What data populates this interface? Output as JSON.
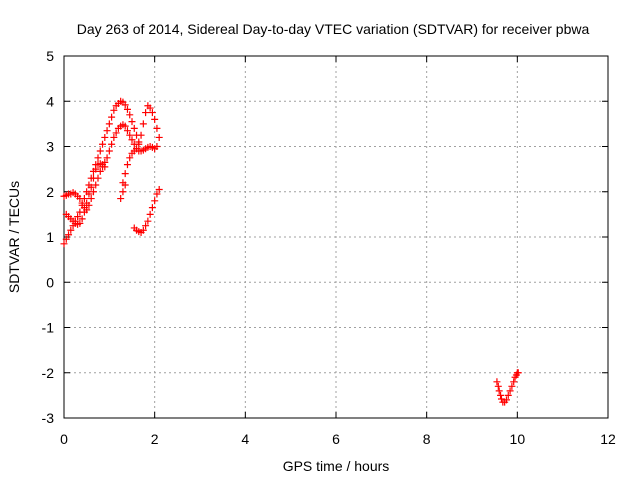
{
  "chart_data": {
    "type": "scatter",
    "title": "Day 263 of 2014, Sidereal Day-to-day VTEC variation (SDTVAR) for receiver pbwa",
    "xlabel": "GPS time / hours",
    "ylabel": "SDTVAR / TECUs",
    "xlim": [
      0,
      12
    ],
    "ylim": [
      -3,
      5
    ],
    "x_ticks": [
      "0",
      "2",
      "4",
      "6",
      "8",
      "10",
      "12"
    ],
    "y_ticks": [
      "-3",
      "-2",
      "-1",
      "0",
      "1",
      "2",
      "3",
      "4",
      "5"
    ],
    "grid": true,
    "legend": "none",
    "marker": "plus",
    "marker_color": "#ff0000",
    "series": [
      {
        "values": [
          [
            0.0,
            0.85
          ],
          [
            0.05,
            0.95
          ],
          [
            0.1,
            1.05
          ],
          [
            0.15,
            1.15
          ],
          [
            0.2,
            1.25
          ],
          [
            0.25,
            1.35
          ],
          [
            0.3,
            1.45
          ],
          [
            0.35,
            1.55
          ],
          [
            0.4,
            1.7
          ],
          [
            0.45,
            1.85
          ],
          [
            0.5,
            2.0
          ],
          [
            0.55,
            2.15
          ],
          [
            0.6,
            2.3
          ],
          [
            0.65,
            2.45
          ],
          [
            0.7,
            2.6
          ],
          [
            0.75,
            2.75
          ],
          [
            0.8,
            2.9
          ],
          [
            0.85,
            3.05
          ],
          [
            0.9,
            3.2
          ],
          [
            0.95,
            3.35
          ],
          [
            1.0,
            3.5
          ],
          [
            1.05,
            3.65
          ],
          [
            1.1,
            3.8
          ],
          [
            1.15,
            3.9
          ],
          [
            1.2,
            3.95
          ],
          [
            1.25,
            4.0
          ],
          [
            1.3,
            3.98
          ],
          [
            1.35,
            3.92
          ],
          [
            1.4,
            3.82
          ],
          [
            1.45,
            3.7
          ],
          [
            1.5,
            3.55
          ],
          [
            1.55,
            3.4
          ],
          [
            1.6,
            3.25
          ],
          [
            1.65,
            3.1
          ],
          [
            0.0,
            1.9
          ],
          [
            0.05,
            1.92
          ],
          [
            0.1,
            1.95
          ],
          [
            0.15,
            1.95
          ],
          [
            0.2,
            1.98
          ],
          [
            0.25,
            1.95
          ],
          [
            0.3,
            1.9
          ],
          [
            0.35,
            1.85
          ],
          [
            0.4,
            1.75
          ],
          [
            0.45,
            1.65
          ],
          [
            0.5,
            1.6
          ],
          [
            0.55,
            1.7
          ],
          [
            0.6,
            1.85
          ],
          [
            0.65,
            2.0
          ],
          [
            0.7,
            2.15
          ],
          [
            0.75,
            2.3
          ],
          [
            0.8,
            2.45
          ],
          [
            0.85,
            2.55
          ],
          [
            0.9,
            2.65
          ],
          [
            0.95,
            2.75
          ],
          [
            1.0,
            2.9
          ],
          [
            1.05,
            3.05
          ],
          [
            1.1,
            3.2
          ],
          [
            1.15,
            3.3
          ],
          [
            1.2,
            3.4
          ],
          [
            1.25,
            3.45
          ],
          [
            1.3,
            3.48
          ],
          [
            1.35,
            3.45
          ],
          [
            1.4,
            3.35
          ],
          [
            1.45,
            3.25
          ],
          [
            1.5,
            3.15
          ],
          [
            1.55,
            3.05
          ],
          [
            1.6,
            2.95
          ],
          [
            1.65,
            2.9
          ],
          [
            1.7,
            2.9
          ],
          [
            1.75,
            2.92
          ],
          [
            1.8,
            2.95
          ],
          [
            1.85,
            2.98
          ],
          [
            1.9,
            3.0
          ],
          [
            1.95,
            2.98
          ],
          [
            2.0,
            2.95
          ],
          [
            2.05,
            3.0
          ],
          [
            2.1,
            3.2
          ],
          [
            0.05,
            1.5
          ],
          [
            0.1,
            1.45
          ],
          [
            0.15,
            1.4
          ],
          [
            0.2,
            1.35
          ],
          [
            0.25,
            1.3
          ],
          [
            0.3,
            1.28
          ],
          [
            0.35,
            1.3
          ],
          [
            0.4,
            1.4
          ],
          [
            0.45,
            1.55
          ],
          [
            0.5,
            1.75
          ],
          [
            0.55,
            1.95
          ],
          [
            0.6,
            2.1
          ],
          [
            0.65,
            2.3
          ],
          [
            0.7,
            2.5
          ],
          [
            0.75,
            2.6
          ],
          [
            0.8,
            2.62
          ],
          [
            0.85,
            2.6
          ],
          [
            0.9,
            2.55
          ],
          [
            1.3,
            2.2
          ],
          [
            1.35,
            2.4
          ],
          [
            1.4,
            2.6
          ],
          [
            1.45,
            2.75
          ],
          [
            1.5,
            2.85
          ],
          [
            1.55,
            2.9
          ],
          [
            1.6,
            2.95
          ],
          [
            1.65,
            3.05
          ],
          [
            1.7,
            3.25
          ],
          [
            1.75,
            3.5
          ],
          [
            1.8,
            3.75
          ],
          [
            1.85,
            3.9
          ],
          [
            1.9,
            3.85
          ],
          [
            1.95,
            3.75
          ],
          [
            2.0,
            3.6
          ],
          [
            2.05,
            3.4
          ],
          [
            1.25,
            1.85
          ],
          [
            1.3,
            2.0
          ],
          [
            1.35,
            2.15
          ],
          [
            1.55,
            1.2
          ],
          [
            1.6,
            1.15
          ],
          [
            1.65,
            1.12
          ],
          [
            1.7,
            1.1
          ],
          [
            1.75,
            1.15
          ],
          [
            1.8,
            1.25
          ],
          [
            1.85,
            1.35
          ],
          [
            1.9,
            1.5
          ],
          [
            1.95,
            1.65
          ],
          [
            2.0,
            1.8
          ],
          [
            2.05,
            1.95
          ],
          [
            2.1,
            2.05
          ],
          [
            9.55,
            -2.2
          ],
          [
            9.58,
            -2.3
          ],
          [
            9.6,
            -2.4
          ],
          [
            9.63,
            -2.5
          ],
          [
            9.65,
            -2.58
          ],
          [
            9.68,
            -2.65
          ],
          [
            9.72,
            -2.65
          ],
          [
            9.76,
            -2.6
          ],
          [
            9.8,
            -2.5
          ],
          [
            9.84,
            -2.4
          ],
          [
            9.88,
            -2.3
          ],
          [
            9.92,
            -2.2
          ],
          [
            9.95,
            -2.1
          ],
          [
            9.98,
            -2.05
          ],
          [
            10.0,
            -2.0
          ],
          [
            10.02,
            -2.0
          ]
        ]
      }
    ]
  }
}
